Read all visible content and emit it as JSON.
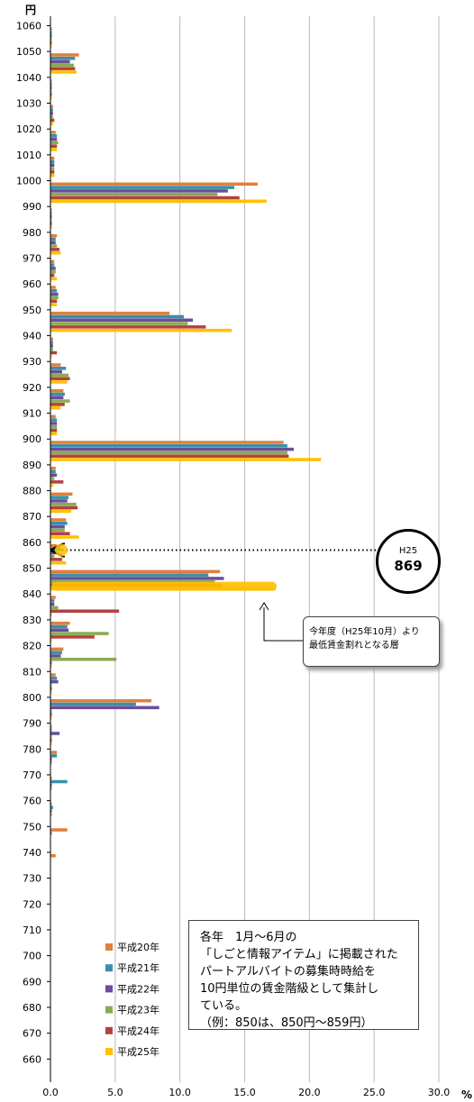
{
  "chart_data": {
    "type": "bar",
    "orientation": "horizontal",
    "y_unit": "円",
    "x_unit": "%",
    "xlim": [
      0,
      30
    ],
    "x_ticks": [
      "0.0",
      "5.0",
      "10.0",
      "15.0",
      "20.0",
      "25.0",
      "30.0"
    ],
    "ylim": [
      660,
      1060
    ],
    "y_ticks": [
      "660",
      "670",
      "680",
      "690",
      "700",
      "710",
      "720",
      "730",
      "740",
      "750",
      "760",
      "770",
      "780",
      "790",
      "800",
      "810",
      "820",
      "830",
      "840",
      "850",
      "860",
      "870",
      "880",
      "890",
      "900",
      "910",
      "920",
      "930",
      "940",
      "950",
      "960",
      "970",
      "980",
      "990",
      "1000",
      "1010",
      "1020",
      "1030",
      "1040",
      "1050",
      "1060"
    ],
    "categories": [
      1060,
      1050,
      1040,
      1030,
      1020,
      1010,
      1000,
      990,
      980,
      970,
      960,
      950,
      940,
      930,
      920,
      910,
      900,
      890,
      880,
      870,
      860,
      850,
      840,
      830,
      820,
      810,
      800,
      790,
      780,
      770,
      760,
      750,
      740,
      730
    ],
    "series": [
      {
        "name": "平成20年",
        "color": "#e0803c",
        "values": [
          0.1,
          2.2,
          0.1,
          0.2,
          0.4,
          0.3,
          16.0,
          0.1,
          0.5,
          0.3,
          0.4,
          9.2,
          0.2,
          0.8,
          1.0,
          0.4,
          18.0,
          0.4,
          1.7,
          1.2,
          0.5,
          13.1,
          0.4,
          1.5,
          1.0,
          0.4,
          7.8,
          0.1,
          0.5,
          0.1,
          0.1,
          1.3,
          0.4,
          0.0
        ]
      },
      {
        "name": "平成21年",
        "color": "#3c8ea8",
        "values": [
          0.1,
          1.9,
          0.1,
          0.2,
          0.5,
          0.3,
          14.2,
          0.1,
          0.4,
          0.3,
          0.5,
          10.3,
          0.2,
          1.2,
          1.1,
          0.5,
          18.3,
          0.4,
          1.4,
          1.3,
          0.9,
          12.2,
          0.3,
          1.3,
          0.9,
          0.5,
          6.6,
          0.1,
          0.5,
          1.3,
          0.2,
          0.1,
          0.0,
          0.0
        ]
      },
      {
        "name": "平成22年",
        "color": "#6a4f9a",
        "values": [
          0.1,
          1.5,
          0.1,
          0.2,
          0.5,
          0.3,
          13.7,
          0.1,
          0.4,
          0.4,
          0.6,
          11.0,
          0.2,
          0.9,
          1.0,
          0.5,
          18.8,
          0.5,
          1.3,
          1.1,
          0.5,
          13.4,
          0.3,
          1.4,
          0.8,
          0.6,
          8.4,
          0.7,
          0.1,
          0.1,
          0.1,
          0.0,
          0.0,
          0.0
        ]
      },
      {
        "name": "平成23年",
        "color": "#8aab52",
        "values": [
          0.1,
          1.8,
          0.1,
          0.2,
          0.6,
          0.3,
          12.9,
          0.1,
          0.5,
          0.4,
          0.6,
          10.6,
          0.2,
          1.4,
          1.5,
          0.5,
          18.3,
          0.3,
          2.0,
          1.1,
          0.3,
          12.7,
          0.6,
          4.5,
          5.1,
          0.1,
          0.1,
          0.1,
          0.1,
          0.1,
          0.1,
          0.0,
          0.0,
          0.0
        ]
      },
      {
        "name": "平成24年",
        "color": "#b3413f",
        "values": [
          0.1,
          1.9,
          0.1,
          0.3,
          0.5,
          0.3,
          14.6,
          0.1,
          0.7,
          0.3,
          0.5,
          12.0,
          0.5,
          1.5,
          1.1,
          0.5,
          18.4,
          1.0,
          2.1,
          1.5,
          0.9,
          13.3,
          5.3,
          3.4,
          0.1,
          0.1,
          0.1,
          0.1,
          0.0,
          0.0,
          0.0,
          0.0,
          0.0,
          0.0
        ]
      },
      {
        "name": "平成25年",
        "color": "#ffc000",
        "values": [
          0.1,
          2.0,
          0.1,
          0.2,
          0.5,
          0.3,
          16.7,
          0.1,
          0.8,
          0.5,
          0.5,
          14.0,
          0.1,
          1.3,
          0.8,
          0.5,
          20.9,
          0.2,
          1.6,
          2.2,
          1.2,
          17.4,
          0.1,
          0.1,
          0.1,
          0.1,
          0.1,
          0.1,
          0.0,
          0.0,
          0.0,
          0.0,
          0.0,
          0.0
        ]
      }
    ],
    "note": {
      "lines": [
        "各年　1月～6月の",
        "「しごと情報アイテム」に掲載された",
        "パートアルバイトの募集時時給を",
        "10円単位の賃金階級として集計し",
        "ている。",
        "（例：850は、850円～859円）"
      ]
    },
    "marker": {
      "top": "H25",
      "value": "869",
      "level": 857
    },
    "callout": {
      "lines": [
        "今年度（H25年10月）より",
        "最低賃金割れとなる層"
      ]
    },
    "grid": true,
    "legend_position": "lower-left"
  }
}
